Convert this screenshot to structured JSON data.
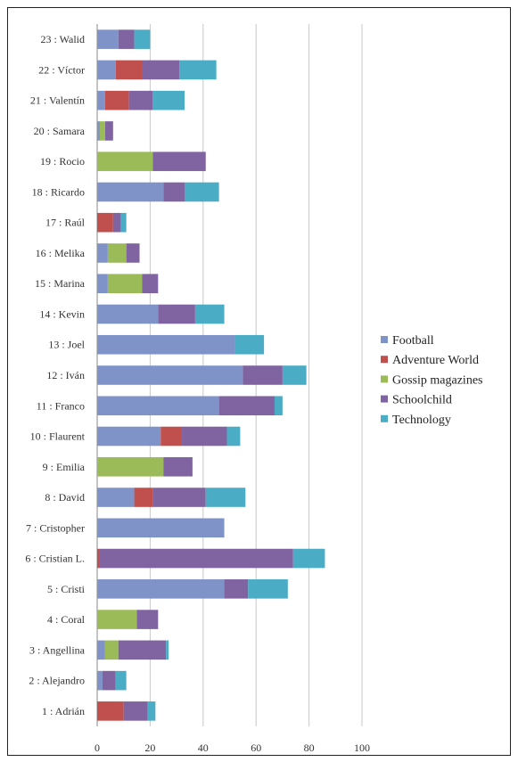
{
  "chart_data": {
    "type": "bar",
    "orientation": "horizontal",
    "stacked": true,
    "categories": [
      "1 : Adrián",
      "2 : Alejandro",
      "3 : Angellina",
      "4 : Coral",
      "5 : Cristi",
      "6 : Cristian L.",
      "7 : Cristopher",
      "8 : David",
      "9 : Emilia",
      "10 : Flaurent",
      "11 : Franco",
      "12 : Iván",
      "13 : Joel",
      "14 : Kevin",
      "15 : Marina",
      "16 : Melika",
      "17 : Raúl",
      "18 : Ricardo",
      "19 : Rocio",
      "20 : Samara",
      "21 : Valentín",
      "22 : Víctor",
      "23 : Walid"
    ],
    "series": [
      {
        "name": "Football",
        "color": "#8093c8",
        "values": [
          0,
          2,
          3,
          0,
          48,
          0,
          48,
          14,
          0,
          24,
          46,
          55,
          52,
          23,
          4,
          4,
          0,
          25,
          0,
          1,
          3,
          7,
          8
        ]
      },
      {
        "name": "Adventure World",
        "color": "#c0504d",
        "values": [
          10,
          0,
          0,
          0,
          0,
          1,
          0,
          7,
          0,
          8,
          0,
          0,
          0,
          0,
          0,
          0,
          6,
          0,
          0,
          0,
          9,
          10,
          0
        ]
      },
      {
        "name": "Gossip magazines",
        "color": "#9bbb59",
        "values": [
          0,
          0,
          5,
          15,
          0,
          0,
          0,
          0,
          25,
          0,
          0,
          0,
          0,
          0,
          13,
          7,
          0,
          0,
          21,
          2,
          0,
          0,
          0
        ]
      },
      {
        "name": "Schoolchild",
        "color": "#8064a2",
        "values": [
          9,
          5,
          18,
          8,
          9,
          73,
          0,
          20,
          11,
          17,
          21,
          15,
          0,
          14,
          6,
          5,
          3,
          8,
          20,
          3,
          9,
          14,
          6
        ]
      },
      {
        "name": "Technology",
        "color": "#4bacc6",
        "values": [
          3,
          4,
          1,
          0,
          15,
          12,
          0,
          15,
          0,
          5,
          3,
          9,
          11,
          11,
          0,
          0,
          2,
          13,
          0,
          0,
          12,
          14,
          6
        ]
      }
    ],
    "xlim": [
      0,
      100
    ],
    "xticks": [
      "0",
      "20",
      "40",
      "60",
      "80",
      "100"
    ],
    "grid": true,
    "legend": "right",
    "title": "",
    "xlabel": "",
    "ylabel": ""
  }
}
